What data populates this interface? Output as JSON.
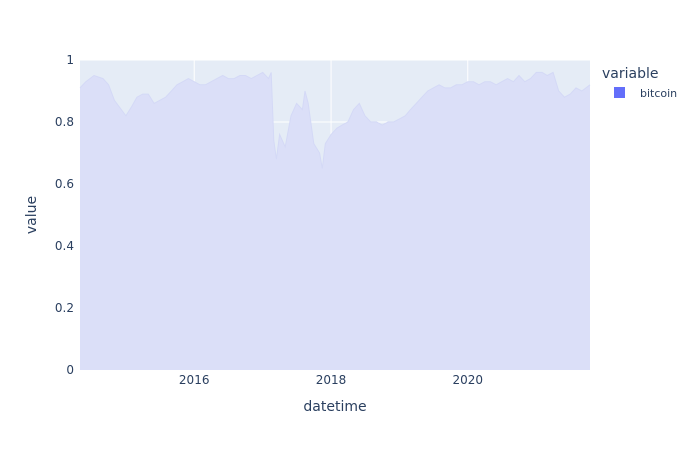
{
  "chart_data": {
    "type": "area",
    "xlabel": "datetime",
    "ylabel": "value",
    "legend": {
      "title": "variable",
      "placement": "top-right",
      "items": [
        {
          "name": "bitcoin",
          "color": "#636efa"
        }
      ]
    },
    "xlim": [
      "2014-05-01",
      "2021-10-15"
    ],
    "ylim": [
      0,
      1
    ],
    "x_ticks": [
      "2016-01-01",
      "2018-01-01",
      "2020-01-01"
    ],
    "x_tick_labels": [
      "2016",
      "2018",
      "2020"
    ],
    "y_ticks": [
      0,
      0.2,
      0.4,
      0.6,
      0.8,
      1
    ],
    "y_tick_labels": [
      "0",
      "0.2",
      "0.4",
      "0.6",
      "0.8",
      "1"
    ],
    "grid": true,
    "colors": {
      "plot_bg": "#e5ecf6",
      "area_fill": "#dbdff8",
      "area_line": "#d4d9f6",
      "grid": "#ffffff",
      "text": "#2a3f5f",
      "legend_swatch": "#636efa"
    },
    "series": [
      {
        "name": "bitcoin",
        "x": [
          "2014-05-01",
          "2014-06-01",
          "2014-07-15",
          "2014-09-01",
          "2014-10-01",
          "2014-11-01",
          "2015-01-01",
          "2015-02-01",
          "2015-03-01",
          "2015-04-01",
          "2015-05-01",
          "2015-06-01",
          "2015-07-01",
          "2015-08-01",
          "2015-09-01",
          "2015-10-01",
          "2015-11-01",
          "2015-12-01",
          "2016-01-01",
          "2016-02-01",
          "2016-03-01",
          "2016-04-01",
          "2016-05-01",
          "2016-06-01",
          "2016-07-01",
          "2016-08-01",
          "2016-09-01",
          "2016-10-01",
          "2016-11-01",
          "2016-12-01",
          "2017-01-01",
          "2017-02-01",
          "2017-02-15",
          "2017-03-01",
          "2017-03-15",
          "2017-04-01",
          "2017-05-01",
          "2017-06-01",
          "2017-07-01",
          "2017-08-01",
          "2017-08-15",
          "2017-09-01",
          "2017-10-01",
          "2017-11-01",
          "2017-11-15",
          "2017-12-01",
          "2018-01-01",
          "2018-02-01",
          "2018-03-01",
          "2018-04-01",
          "2018-05-01",
          "2018-06-01",
          "2018-07-01",
          "2018-08-01",
          "2018-09-01",
          "2018-10-01",
          "2018-11-01",
          "2018-12-01",
          "2019-01-01",
          "2019-02-01",
          "2019-03-01",
          "2019-04-01",
          "2019-05-01",
          "2019-06-01",
          "2019-07-01",
          "2019-08-01",
          "2019-09-01",
          "2019-10-01",
          "2019-11-01",
          "2019-12-01",
          "2020-01-01",
          "2020-02-01",
          "2020-03-01",
          "2020-04-01",
          "2020-05-01",
          "2020-06-01",
          "2020-07-01",
          "2020-08-01",
          "2020-09-01",
          "2020-10-01",
          "2020-11-01",
          "2020-12-01",
          "2021-01-01",
          "2021-02-01",
          "2021-03-01",
          "2021-04-01",
          "2021-05-01",
          "2021-06-01",
          "2021-07-01",
          "2021-08-01",
          "2021-09-01",
          "2021-10-15"
        ],
        "values": [
          0.91,
          0.93,
          0.95,
          0.94,
          0.92,
          0.87,
          0.82,
          0.85,
          0.88,
          0.89,
          0.89,
          0.86,
          0.87,
          0.88,
          0.9,
          0.92,
          0.93,
          0.94,
          0.93,
          0.92,
          0.92,
          0.93,
          0.94,
          0.95,
          0.94,
          0.94,
          0.95,
          0.95,
          0.94,
          0.95,
          0.96,
          0.94,
          0.96,
          0.74,
          0.68,
          0.76,
          0.72,
          0.82,
          0.86,
          0.84,
          0.9,
          0.86,
          0.73,
          0.7,
          0.65,
          0.73,
          0.76,
          0.78,
          0.79,
          0.8,
          0.84,
          0.86,
          0.82,
          0.8,
          0.8,
          0.79,
          0.8,
          0.8,
          0.81,
          0.82,
          0.84,
          0.86,
          0.88,
          0.9,
          0.91,
          0.92,
          0.91,
          0.91,
          0.92,
          0.92,
          0.93,
          0.93,
          0.92,
          0.93,
          0.93,
          0.92,
          0.93,
          0.94,
          0.93,
          0.95,
          0.93,
          0.94,
          0.96,
          0.96,
          0.95,
          0.96,
          0.9,
          0.88,
          0.89,
          0.91,
          0.9,
          0.92
        ]
      }
    ]
  }
}
